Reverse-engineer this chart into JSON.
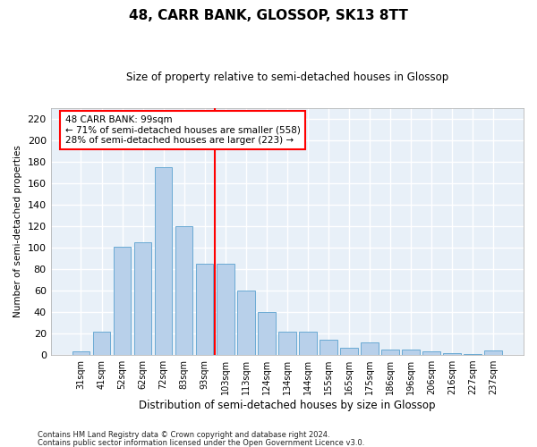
{
  "title": "48, CARR BANK, GLOSSOP, SK13 8TT",
  "subtitle": "Size of property relative to semi-detached houses in Glossop",
  "xlabel": "Distribution of semi-detached houses by size in Glossop",
  "ylabel": "Number of semi-detached properties",
  "footnote1": "Contains HM Land Registry data © Crown copyright and database right 2024.",
  "footnote2": "Contains public sector information licensed under the Open Government Licence v3.0.",
  "categories": [
    "31sqm",
    "41sqm",
    "52sqm",
    "62sqm",
    "72sqm",
    "83sqm",
    "93sqm",
    "103sqm",
    "113sqm",
    "124sqm",
    "134sqm",
    "144sqm",
    "155sqm",
    "165sqm",
    "175sqm",
    "186sqm",
    "196sqm",
    "206sqm",
    "216sqm",
    "227sqm",
    "237sqm"
  ],
  "values": [
    3,
    22,
    101,
    105,
    175,
    120,
    85,
    85,
    60,
    40,
    22,
    22,
    14,
    7,
    12,
    5,
    5,
    3,
    2,
    1,
    4
  ],
  "bar_color": "#b8d0ea",
  "bar_edge_color": "#6aaad4",
  "background_color": "#e8f0f8",
  "grid_color": "#ffffff",
  "vline_x_index": 7,
  "vline_color": "red",
  "annotation_text": "48 CARR BANK: 99sqm\n← 71% of semi-detached houses are smaller (558)\n28% of semi-detached houses are larger (223) →",
  "annotation_box_color": "red",
  "ylim": [
    0,
    230
  ],
  "yticks": [
    0,
    20,
    40,
    60,
    80,
    100,
    120,
    140,
    160,
    180,
    200,
    220
  ]
}
